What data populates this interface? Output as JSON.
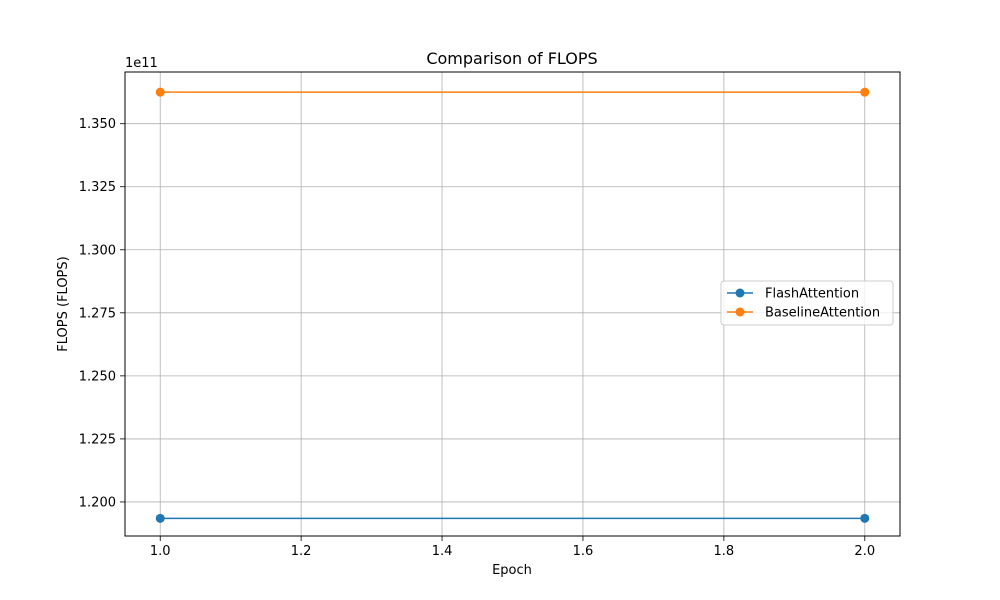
{
  "chart_data": {
    "type": "line",
    "title": "Comparison of FLOPS",
    "xlabel": "Epoch",
    "ylabel": "FLOPS (FLOPS)",
    "y_offset_label": "1e11",
    "xlim": [
      0.95,
      2.05
    ],
    "ylim": [
      118650000000.0,
      137050000000.0
    ],
    "x_ticks": [
      1.0,
      1.2,
      1.4,
      1.6,
      1.8,
      2.0
    ],
    "x_tick_labels": [
      "1.0",
      "1.2",
      "1.4",
      "1.6",
      "1.8",
      "2.0"
    ],
    "y_ticks": [
      120000000000.0,
      122500000000.0,
      125000000000.0,
      127500000000.0,
      130000000000.0,
      132500000000.0,
      135000000000.0
    ],
    "y_tick_labels": [
      "1.200",
      "1.225",
      "1.250",
      "1.275",
      "1.300",
      "1.325",
      "1.350"
    ],
    "grid": true,
    "legend_position": "center-right",
    "series": [
      {
        "name": "FlashAttention",
        "color": "#1f77b4",
        "marker": "circle",
        "x": [
          1.0,
          2.0
        ],
        "y": [
          119350000000.0,
          119350000000.0
        ]
      },
      {
        "name": "BaselineAttention",
        "color": "#ff7f0e",
        "marker": "circle",
        "x": [
          1.0,
          2.0
        ],
        "y": [
          136250000000.0,
          136250000000.0
        ]
      }
    ]
  }
}
